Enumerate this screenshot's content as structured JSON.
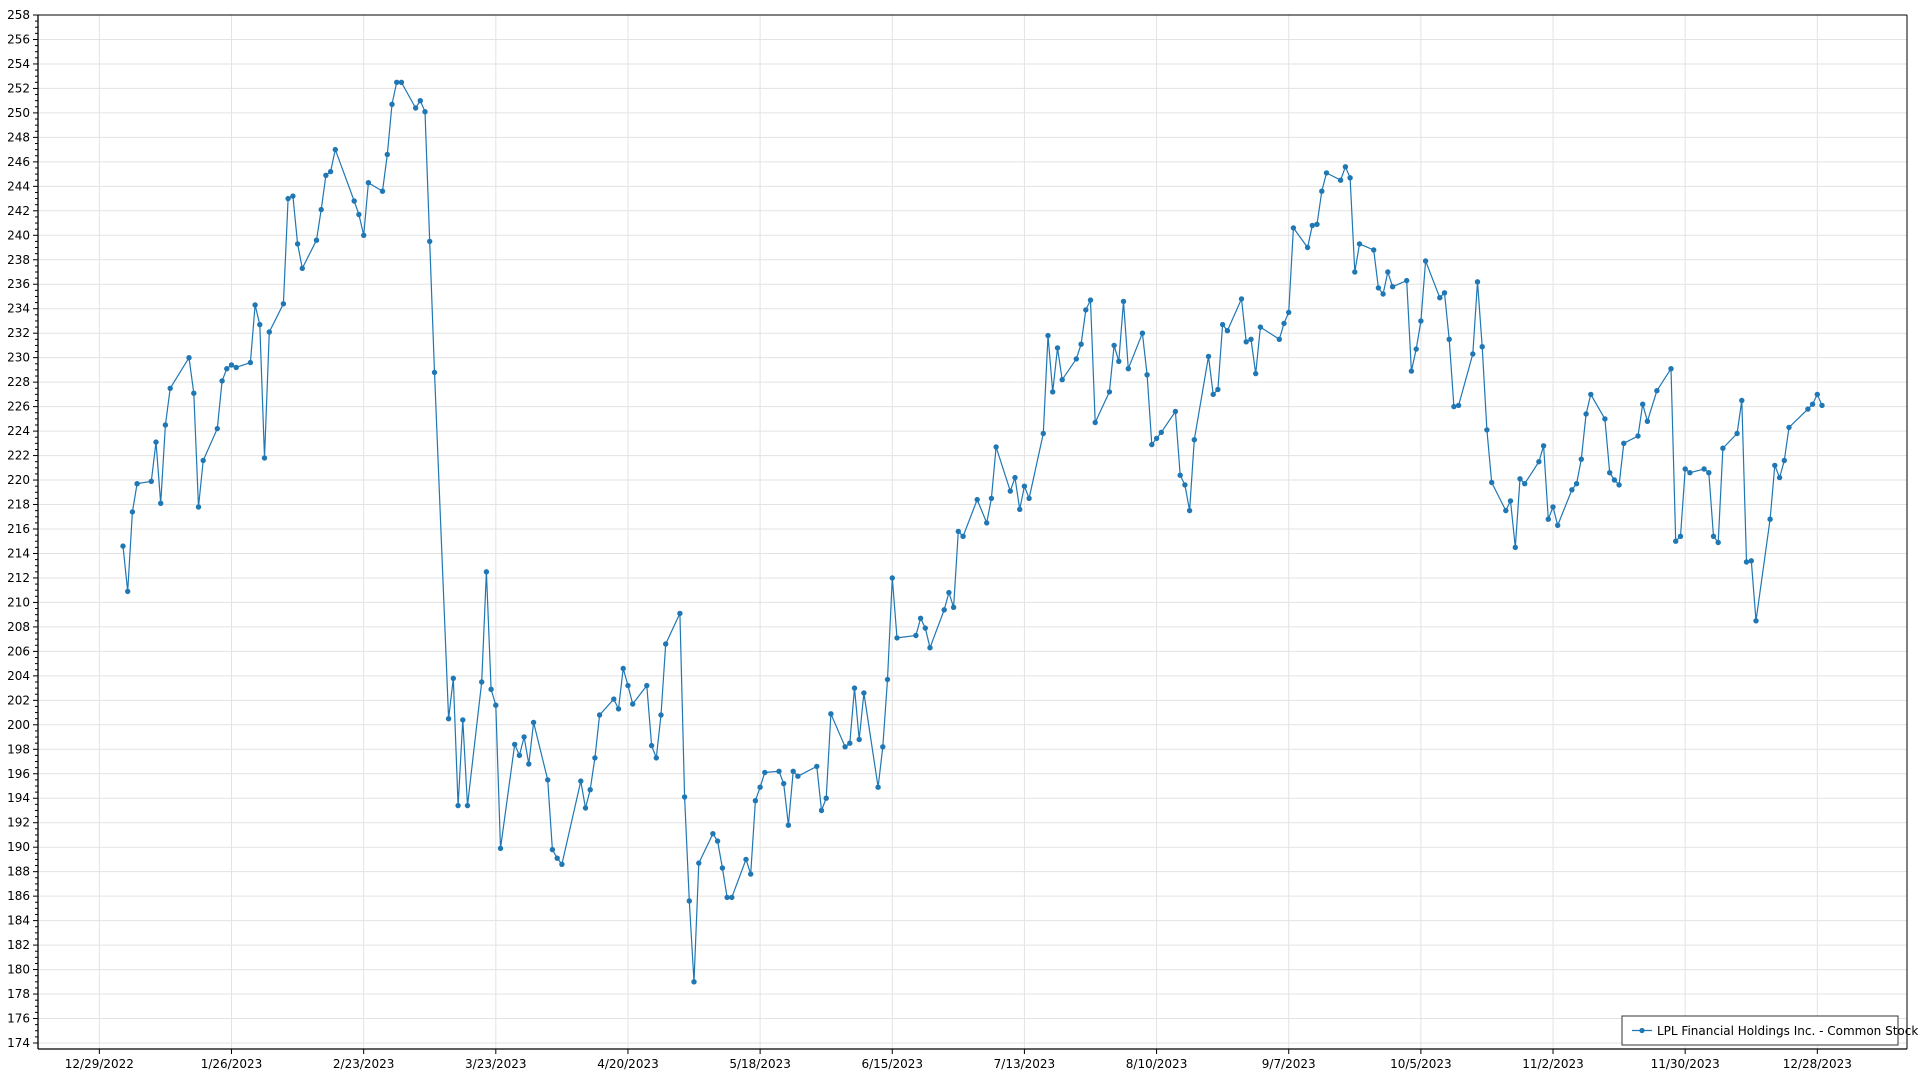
{
  "chart_data": {
    "type": "line",
    "title": "",
    "xlabel": "",
    "ylabel": "",
    "ylim": [
      174,
      258
    ],
    "ytick_step": 2,
    "xlim": [
      "2022-12-16",
      "2024-01-16"
    ],
    "x_ticks": [
      "12/29/2022",
      "1/26/2023",
      "2/23/2023",
      "3/23/2023",
      "4/20/2023",
      "5/18/2023",
      "6/15/2023",
      "7/13/2023",
      "8/10/2023",
      "9/7/2023",
      "10/5/2023",
      "11/2/2023",
      "11/30/2023",
      "12/28/2023"
    ],
    "grid": true,
    "legend_position": "bottom-right",
    "series": [
      {
        "name": "LPL Financial Holdings Inc. - Common Stock",
        "color": "#1f77b4",
        "marker": "circle",
        "points": [
          [
            "2023-01-03",
            214.6
          ],
          [
            "2023-01-04",
            210.9
          ],
          [
            "2023-01-05",
            217.4
          ],
          [
            "2023-01-06",
            219.7
          ],
          [
            "2023-01-09",
            219.9
          ],
          [
            "2023-01-10",
            223.1
          ],
          [
            "2023-01-11",
            218.1
          ],
          [
            "2023-01-12",
            224.5
          ],
          [
            "2023-01-13",
            227.5
          ],
          [
            "2023-01-17",
            230.0
          ],
          [
            "2023-01-18",
            227.1
          ],
          [
            "2023-01-19",
            217.8
          ],
          [
            "2023-01-20",
            221.6
          ],
          [
            "2023-01-23",
            224.2
          ],
          [
            "2023-01-24",
            228.1
          ],
          [
            "2023-01-25",
            229.1
          ],
          [
            "2023-01-26",
            229.4
          ],
          [
            "2023-01-27",
            229.2
          ],
          [
            "2023-01-30",
            229.6
          ],
          [
            "2023-01-31",
            234.3
          ],
          [
            "2023-02-01",
            232.7
          ],
          [
            "2023-02-02",
            221.8
          ],
          [
            "2023-02-03",
            232.1
          ],
          [
            "2023-02-06",
            234.4
          ],
          [
            "2023-02-07",
            243.0
          ],
          [
            "2023-02-08",
            243.2
          ],
          [
            "2023-02-09",
            239.3
          ],
          [
            "2023-02-10",
            237.3
          ],
          [
            "2023-02-13",
            239.6
          ],
          [
            "2023-02-14",
            242.1
          ],
          [
            "2023-02-15",
            244.9
          ],
          [
            "2023-02-16",
            245.2
          ],
          [
            "2023-02-17",
            247.0
          ],
          [
            "2023-02-21",
            242.8
          ],
          [
            "2023-02-22",
            241.7
          ],
          [
            "2023-02-23",
            240.0
          ],
          [
            "2023-02-24",
            244.3
          ],
          [
            "2023-02-27",
            243.6
          ],
          [
            "2023-02-28",
            246.6
          ],
          [
            "2023-03-01",
            250.7
          ],
          [
            "2023-03-02",
            252.5
          ],
          [
            "2023-03-03",
            252.5
          ],
          [
            "2023-03-06",
            250.4
          ],
          [
            "2023-03-07",
            251.0
          ],
          [
            "2023-03-08",
            250.1
          ],
          [
            "2023-03-09",
            239.5
          ],
          [
            "2023-03-10",
            228.8
          ],
          [
            "2023-03-13",
            200.5
          ],
          [
            "2023-03-14",
            203.8
          ],
          [
            "2023-03-15",
            193.4
          ],
          [
            "2023-03-16",
            200.4
          ],
          [
            "2023-03-17",
            193.4
          ],
          [
            "2023-03-20",
            203.5
          ],
          [
            "2023-03-21",
            212.5
          ],
          [
            "2023-03-22",
            202.9
          ],
          [
            "2023-03-23",
            201.6
          ],
          [
            "2023-03-24",
            189.9
          ],
          [
            "2023-03-27",
            198.4
          ],
          [
            "2023-03-28",
            197.5
          ],
          [
            "2023-03-29",
            199.0
          ],
          [
            "2023-03-30",
            196.8
          ],
          [
            "2023-03-31",
            200.2
          ],
          [
            "2023-04-03",
            195.5
          ],
          [
            "2023-04-04",
            189.8
          ],
          [
            "2023-04-05",
            189.1
          ],
          [
            "2023-04-06",
            188.6
          ],
          [
            "2023-04-10",
            195.4
          ],
          [
            "2023-04-11",
            193.2
          ],
          [
            "2023-04-12",
            194.7
          ],
          [
            "2023-04-13",
            197.3
          ],
          [
            "2023-04-14",
            200.8
          ],
          [
            "2023-04-17",
            202.1
          ],
          [
            "2023-04-18",
            201.3
          ],
          [
            "2023-04-19",
            204.6
          ],
          [
            "2023-04-20",
            203.2
          ],
          [
            "2023-04-21",
            201.7
          ],
          [
            "2023-04-24",
            203.2
          ],
          [
            "2023-04-25",
            198.3
          ],
          [
            "2023-04-26",
            197.3
          ],
          [
            "2023-04-27",
            200.8
          ],
          [
            "2023-04-28",
            206.6
          ],
          [
            "2023-05-01",
            209.1
          ],
          [
            "2023-05-02",
            194.1
          ],
          [
            "2023-05-03",
            185.6
          ],
          [
            "2023-05-04",
            179.0
          ],
          [
            "2023-05-05",
            188.7
          ],
          [
            "2023-05-08",
            191.1
          ],
          [
            "2023-05-09",
            190.5
          ],
          [
            "2023-05-10",
            188.3
          ],
          [
            "2023-05-11",
            185.9
          ],
          [
            "2023-05-12",
            185.9
          ],
          [
            "2023-05-15",
            189.0
          ],
          [
            "2023-05-16",
            187.8
          ],
          [
            "2023-05-17",
            193.8
          ],
          [
            "2023-05-18",
            194.9
          ],
          [
            "2023-05-19",
            196.1
          ],
          [
            "2023-05-22",
            196.2
          ],
          [
            "2023-05-23",
            195.2
          ],
          [
            "2023-05-24",
            191.8
          ],
          [
            "2023-05-25",
            196.2
          ],
          [
            "2023-05-26",
            195.8
          ],
          [
            "2023-05-30",
            196.6
          ],
          [
            "2023-05-31",
            193.0
          ],
          [
            "2023-06-01",
            194.0
          ],
          [
            "2023-06-02",
            200.9
          ],
          [
            "2023-06-05",
            198.2
          ],
          [
            "2023-06-06",
            198.5
          ],
          [
            "2023-06-07",
            203.0
          ],
          [
            "2023-06-08",
            198.8
          ],
          [
            "2023-06-09",
            202.6
          ],
          [
            "2023-06-12",
            194.9
          ],
          [
            "2023-06-13",
            198.2
          ],
          [
            "2023-06-14",
            203.7
          ],
          [
            "2023-06-15",
            212.0
          ],
          [
            "2023-06-16",
            207.1
          ],
          [
            "2023-06-20",
            207.3
          ],
          [
            "2023-06-21",
            208.7
          ],
          [
            "2023-06-22",
            207.9
          ],
          [
            "2023-06-23",
            206.3
          ],
          [
            "2023-06-26",
            209.4
          ],
          [
            "2023-06-27",
            210.8
          ],
          [
            "2023-06-28",
            209.6
          ],
          [
            "2023-06-29",
            215.8
          ],
          [
            "2023-06-30",
            215.4
          ],
          [
            "2023-07-03",
            218.4
          ],
          [
            "2023-07-05",
            216.5
          ],
          [
            "2023-07-06",
            218.5
          ],
          [
            "2023-07-07",
            222.7
          ],
          [
            "2023-07-10",
            219.1
          ],
          [
            "2023-07-11",
            220.2
          ],
          [
            "2023-07-12",
            217.6
          ],
          [
            "2023-07-13",
            219.5
          ],
          [
            "2023-07-14",
            218.5
          ],
          [
            "2023-07-17",
            223.8
          ],
          [
            "2023-07-18",
            231.8
          ],
          [
            "2023-07-19",
            227.2
          ],
          [
            "2023-07-20",
            230.8
          ],
          [
            "2023-07-21",
            228.2
          ],
          [
            "2023-07-24",
            229.9
          ],
          [
            "2023-07-25",
            231.1
          ],
          [
            "2023-07-26",
            233.9
          ],
          [
            "2023-07-27",
            234.7
          ],
          [
            "2023-07-28",
            224.7
          ],
          [
            "2023-07-31",
            227.2
          ],
          [
            "2023-08-01",
            231.0
          ],
          [
            "2023-08-02",
            229.7
          ],
          [
            "2023-08-03",
            234.6
          ],
          [
            "2023-08-04",
            229.1
          ],
          [
            "2023-08-07",
            232.0
          ],
          [
            "2023-08-08",
            228.6
          ],
          [
            "2023-08-09",
            222.9
          ],
          [
            "2023-08-10",
            223.4
          ],
          [
            "2023-08-11",
            223.9
          ],
          [
            "2023-08-14",
            225.6
          ],
          [
            "2023-08-15",
            220.4
          ],
          [
            "2023-08-16",
            219.6
          ],
          [
            "2023-08-17",
            217.5
          ],
          [
            "2023-08-18",
            223.3
          ],
          [
            "2023-08-21",
            230.1
          ],
          [
            "2023-08-22",
            227.0
          ],
          [
            "2023-08-23",
            227.4
          ],
          [
            "2023-08-24",
            232.7
          ],
          [
            "2023-08-25",
            232.2
          ],
          [
            "2023-08-28",
            234.8
          ],
          [
            "2023-08-29",
            231.3
          ],
          [
            "2023-08-30",
            231.5
          ],
          [
            "2023-08-31",
            228.7
          ],
          [
            "2023-09-01",
            232.5
          ],
          [
            "2023-09-05",
            231.5
          ],
          [
            "2023-09-06",
            232.8
          ],
          [
            "2023-09-07",
            233.7
          ],
          [
            "2023-09-08",
            240.6
          ],
          [
            "2023-09-11",
            239.0
          ],
          [
            "2023-09-12",
            240.8
          ],
          [
            "2023-09-13",
            240.9
          ],
          [
            "2023-09-14",
            243.6
          ],
          [
            "2023-09-15",
            245.1
          ],
          [
            "2023-09-18",
            244.5
          ],
          [
            "2023-09-19",
            245.6
          ],
          [
            "2023-09-20",
            244.7
          ],
          [
            "2023-09-21",
            237.0
          ],
          [
            "2023-09-22",
            239.3
          ],
          [
            "2023-09-25",
            238.8
          ],
          [
            "2023-09-26",
            235.7
          ],
          [
            "2023-09-27",
            235.2
          ],
          [
            "2023-09-28",
            237.0
          ],
          [
            "2023-09-29",
            235.8
          ],
          [
            "2023-10-02",
            236.3
          ],
          [
            "2023-10-03",
            228.9
          ],
          [
            "2023-10-04",
            230.7
          ],
          [
            "2023-10-05",
            233.0
          ],
          [
            "2023-10-06",
            237.9
          ],
          [
            "2023-10-09",
            234.9
          ],
          [
            "2023-10-10",
            235.3
          ],
          [
            "2023-10-11",
            231.5
          ],
          [
            "2023-10-12",
            226.0
          ],
          [
            "2023-10-13",
            226.1
          ],
          [
            "2023-10-16",
            230.3
          ],
          [
            "2023-10-17",
            236.2
          ],
          [
            "2023-10-18",
            230.9
          ],
          [
            "2023-10-19",
            224.1
          ],
          [
            "2023-10-20",
            219.8
          ],
          [
            "2023-10-23",
            217.5
          ],
          [
            "2023-10-24",
            218.3
          ],
          [
            "2023-10-25",
            214.5
          ],
          [
            "2023-10-26",
            220.1
          ],
          [
            "2023-10-27",
            219.7
          ],
          [
            "2023-10-30",
            221.5
          ],
          [
            "2023-10-31",
            222.8
          ],
          [
            "2023-11-01",
            216.8
          ],
          [
            "2023-11-02",
            217.8
          ],
          [
            "2023-11-03",
            216.3
          ],
          [
            "2023-11-06",
            219.2
          ],
          [
            "2023-11-07",
            219.7
          ],
          [
            "2023-11-08",
            221.7
          ],
          [
            "2023-11-09",
            225.4
          ],
          [
            "2023-11-10",
            227.0
          ],
          [
            "2023-11-13",
            225.0
          ],
          [
            "2023-11-14",
            220.6
          ],
          [
            "2023-11-15",
            220.0
          ],
          [
            "2023-11-16",
            219.6
          ],
          [
            "2023-11-17",
            223.0
          ],
          [
            "2023-11-20",
            223.6
          ],
          [
            "2023-11-21",
            226.2
          ],
          [
            "2023-11-22",
            224.8
          ],
          [
            "2023-11-24",
            227.3
          ],
          [
            "2023-11-27",
            229.1
          ],
          [
            "2023-11-28",
            215.0
          ],
          [
            "2023-11-29",
            215.4
          ],
          [
            "2023-11-30",
            220.9
          ],
          [
            "2023-12-01",
            220.6
          ],
          [
            "2023-12-04",
            220.9
          ],
          [
            "2023-12-05",
            220.6
          ],
          [
            "2023-12-06",
            215.4
          ],
          [
            "2023-12-07",
            214.9
          ],
          [
            "2023-12-08",
            222.6
          ],
          [
            "2023-12-11",
            223.8
          ],
          [
            "2023-12-12",
            226.5
          ],
          [
            "2023-12-13",
            213.3
          ],
          [
            "2023-12-14",
            213.4
          ],
          [
            "2023-12-15",
            208.5
          ],
          [
            "2023-12-18",
            216.8
          ],
          [
            "2023-12-19",
            221.2
          ],
          [
            "2023-12-20",
            220.2
          ],
          [
            "2023-12-21",
            221.6
          ],
          [
            "2023-12-22",
            224.3
          ],
          [
            "2023-12-26",
            225.8
          ],
          [
            "2023-12-27",
            226.2
          ],
          [
            "2023-12-28",
            227.0
          ],
          [
            "2023-12-29",
            226.1
          ]
        ]
      }
    ]
  }
}
